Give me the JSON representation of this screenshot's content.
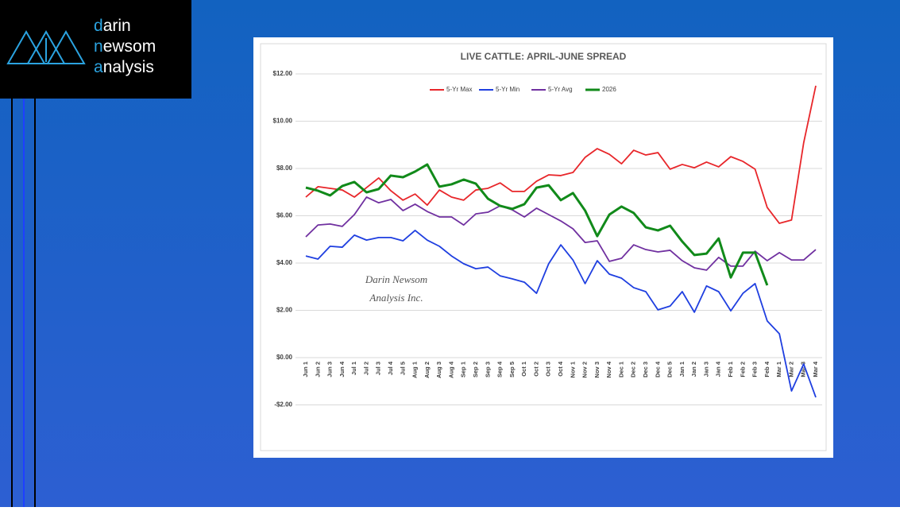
{
  "logo": {
    "lines": [
      "darin",
      "newsom",
      "analysis"
    ]
  },
  "chart_data": {
    "type": "line",
    "title": "LIVE CATTLE: APRIL-JUNE SPREAD",
    "watermark": [
      "Darin Newsom",
      "Analysis Inc."
    ],
    "legend": "top",
    "categories": [
      "Jun 1",
      "Jun 2",
      "Jun 3",
      "Jun 4",
      "Jul 1",
      "Jul 2",
      "Jul 3",
      "Jul 4",
      "Jul 5",
      "Aug 1",
      "Aug 2",
      "Aug 3",
      "Aug 4",
      "Sep 1",
      "Sep 2",
      "Sep 3",
      "Sep 4",
      "Sep 5",
      "Oct 1",
      "Oct 2",
      "Oct 3",
      "Oct 4",
      "Nov 1",
      "Nov 2",
      "Nov 3",
      "Nov 4",
      "Dec 1",
      "Dec 2",
      "Dec 3",
      "Dec 4",
      "Dec 5",
      "Jan 1",
      "Jan 2",
      "Jan 3",
      "Jan 4",
      "Feb 1",
      "Feb 2",
      "Feb 3",
      "Feb 4",
      "Mar 1",
      "Mar 2",
      "Mar 3",
      "Mar 4"
    ],
    "series": [
      {
        "name": "5-Yr Max",
        "color": "#e8262a",
        "values": [
          6.79,
          7.23,
          7.16,
          7.09,
          6.79,
          7.19,
          7.6,
          7.06,
          6.66,
          6.92,
          6.45,
          7.09,
          6.79,
          6.66,
          7.09,
          7.16,
          7.39,
          7.03,
          7.03,
          7.46,
          7.73,
          7.7,
          7.83,
          8.47,
          8.84,
          8.6,
          8.2,
          8.77,
          8.57,
          8.67,
          7.97,
          8.17,
          8.03,
          8.27,
          8.07,
          8.5,
          8.3,
          7.97,
          6.35,
          5.68,
          5.82,
          9.08,
          11.5
        ]
      },
      {
        "name": "5-Yr Min",
        "color": "#1f3fe0",
        "values": [
          4.3,
          4.17,
          4.71,
          4.67,
          5.18,
          4.97,
          5.08,
          5.08,
          4.94,
          5.38,
          4.97,
          4.71,
          4.3,
          3.97,
          3.76,
          3.83,
          3.46,
          3.33,
          3.19,
          2.72,
          3.97,
          4.77,
          4.13,
          3.13,
          4.1,
          3.53,
          3.36,
          2.96,
          2.79,
          2.02,
          2.18,
          2.79,
          1.92,
          3.03,
          2.79,
          1.98,
          2.72,
          3.13,
          1.55,
          1.01,
          -1.41,
          -0.27,
          -1.68
        ]
      },
      {
        "name": "5-Yr Avg",
        "color": "#7030a0",
        "values": [
          5.11,
          5.61,
          5.65,
          5.55,
          6.05,
          6.79,
          6.55,
          6.69,
          6.22,
          6.49,
          6.18,
          5.95,
          5.95,
          5.61,
          6.08,
          6.15,
          6.42,
          6.25,
          5.95,
          6.32,
          6.05,
          5.78,
          5.45,
          4.87,
          4.94,
          4.07,
          4.2,
          4.77,
          4.57,
          4.47,
          4.54,
          4.1,
          3.8,
          3.7,
          4.24,
          3.87,
          3.87,
          4.5,
          4.1,
          4.44,
          4.13,
          4.13,
          4.57
        ]
      },
      {
        "name": "2026",
        "color": "#118a1a",
        "values": [
          7.19,
          7.06,
          6.86,
          7.26,
          7.43,
          6.99,
          7.13,
          7.7,
          7.63,
          7.87,
          8.17,
          7.23,
          7.33,
          7.53,
          7.36,
          6.72,
          6.42,
          6.29,
          6.49,
          7.19,
          7.29,
          6.66,
          6.96,
          6.22,
          5.14,
          6.05,
          6.39,
          6.12,
          5.51,
          5.38,
          5.58,
          4.91,
          4.34,
          4.4,
          5.04,
          3.39,
          4.44,
          4.44,
          3.06,
          null,
          null,
          null,
          null
        ]
      }
    ],
    "ylim": [
      -2,
      12
    ],
    "yticks": [
      {
        "value": 12,
        "label": "$12.00"
      },
      {
        "value": 10,
        "label": "$10.00"
      },
      {
        "value": 8,
        "label": "$8.00"
      },
      {
        "value": 6,
        "label": "$6.00"
      },
      {
        "value": 4,
        "label": "$4.00"
      },
      {
        "value": 2,
        "label": "$2.00"
      },
      {
        "value": 0,
        "label": "$0.00"
      },
      {
        "value": -2,
        "label": "-$2.00"
      }
    ],
    "grid": true
  }
}
